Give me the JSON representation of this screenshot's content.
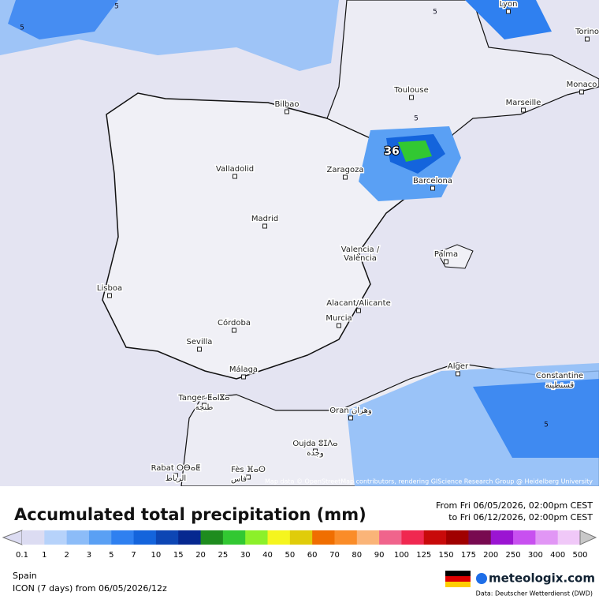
{
  "map": {
    "cities": [
      "Lyon",
      "Torino",
      "Monaco",
      "Toulouse",
      "Marseille",
      "Bilbao",
      "Zaragoza",
      "Barcelona",
      "Valladolid",
      "Madrid",
      "Valencia /",
      "València",
      "Palma",
      "Lisboa",
      "Alacant/Alicante",
      "Murcia",
      "Córdoba",
      "Sevilla",
      "Málaga",
      "Alger",
      "Constantine",
      "قسنطينة",
      "Tanger ⵟⴰⵏⴵⴰ",
      "طنجة",
      "Oran وهران",
      "Oujda ⵓⵊⴷⴰ",
      "وجدة",
      "Rabat ⵔⴱⴰⵟ",
      "الرباط",
      "Fès ⴼⴰⵙ",
      "فاس"
    ],
    "contour_labels": [
      5,
      5,
      5,
      5,
      5
    ],
    "max_value": 36,
    "attribution": "Map data © OpenStreetMap contributors, rendering GIScience Research Group @ Heidelberg University"
  },
  "footer": {
    "title": "Accumulated total precipitation (mm)",
    "from": "From Fri 06/05/2026, 02:00pm CEST",
    "to": "to Fri 06/12/2026, 02:00pm CEST",
    "legend": [
      {
        "value": 0.1,
        "color": "#dcdcf2"
      },
      {
        "value": 1,
        "color": "#b6d2fa"
      },
      {
        "value": 2,
        "color": "#8cbcf8"
      },
      {
        "value": 3,
        "color": "#5aa0f4"
      },
      {
        "value": 5,
        "color": "#2f80f0"
      },
      {
        "value": 7,
        "color": "#1464dc"
      },
      {
        "value": 10,
        "color": "#0d46b4"
      },
      {
        "value": 15,
        "color": "#062890"
      },
      {
        "value": 20,
        "color": "#1e8c1e"
      },
      {
        "value": 25,
        "color": "#32c832"
      },
      {
        "value": 30,
        "color": "#8cf02a"
      },
      {
        "value": 40,
        "color": "#f5f51e"
      },
      {
        "value": 50,
        "color": "#e0cc0a"
      },
      {
        "value": 60,
        "color": "#f06e00"
      },
      {
        "value": 70,
        "color": "#fa8c28"
      },
      {
        "value": 80,
        "color": "#fab478"
      },
      {
        "value": 90,
        "color": "#f0648c"
      },
      {
        "value": 100,
        "color": "#f02850"
      },
      {
        "value": 125,
        "color": "#c80a0a"
      },
      {
        "value": 150,
        "color": "#a00000"
      },
      {
        "value": 175,
        "color": "#780a50"
      },
      {
        "value": 200,
        "color": "#9b14d2"
      },
      {
        "value": 250,
        "color": "#c850f0"
      },
      {
        "value": 300,
        "color": "#e196f5"
      },
      {
        "value": 400,
        "color": "#f0c8f8"
      },
      {
        "value": 500,
        "color": "#c8c8c8"
      }
    ],
    "region": "Spain",
    "model": "ICON (7 days) from 06/05/2026/12z",
    "brand": "meteologix.com",
    "source": "Data: Deutscher Wetterdienst (DWD)"
  }
}
